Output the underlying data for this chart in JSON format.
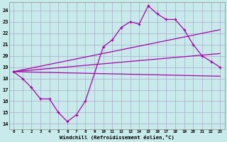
{
  "xlabel": "Windchill (Refroidissement éolien,°C)",
  "bg_color": "#c8eaea",
  "grid_color": "#aaaacc",
  "line_color": "#aa00aa",
  "xlim": [
    -0.5,
    23.5
  ],
  "ylim": [
    13.5,
    24.7
  ],
  "yticks": [
    14,
    15,
    16,
    17,
    18,
    19,
    20,
    21,
    22,
    23,
    24
  ],
  "xticks": [
    0,
    1,
    2,
    3,
    4,
    5,
    6,
    7,
    8,
    9,
    10,
    11,
    12,
    13,
    14,
    15,
    16,
    17,
    18,
    19,
    20,
    21,
    22,
    23
  ],
  "line1_x": [
    0,
    1,
    2,
    3,
    4,
    5,
    6,
    7,
    8,
    10,
    11,
    12,
    13,
    14,
    15,
    16,
    17,
    18,
    19,
    20,
    21,
    22,
    23
  ],
  "line1_y": [
    18.6,
    18.0,
    17.2,
    16.2,
    16.2,
    15.0,
    14.2,
    14.8,
    16.0,
    20.8,
    21.4,
    22.5,
    23.0,
    22.8,
    24.4,
    23.7,
    23.2,
    23.2,
    22.3,
    21.0,
    20.0,
    19.5,
    19.0
  ],
  "line2_x": [
    0,
    23
  ],
  "line2_y": [
    18.6,
    18.2
  ],
  "line3_x": [
    0,
    23
  ],
  "line3_y": [
    18.6,
    22.3
  ],
  "line4_x": [
    0,
    23
  ],
  "line4_y": [
    18.6,
    20.2
  ]
}
